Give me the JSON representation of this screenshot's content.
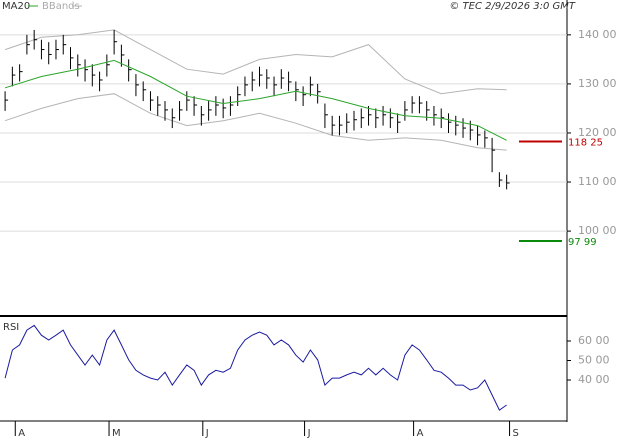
{
  "chart_data": [
    {
      "type": "ohlc",
      "copyright": "© TEC 2/9/2026 3:0 GMT",
      "xlim": [
        -0.7,
        70.7
      ],
      "ylim": [
        82.9,
        147.1
      ],
      "yticks": [
        {
          "value": 140,
          "label": "140 00"
        },
        {
          "value": 130,
          "label": "130 00"
        },
        {
          "value": 120,
          "label": "120 00"
        },
        {
          "value": 110,
          "label": "110 00"
        },
        {
          "value": 100,
          "label": "100 00"
        }
      ],
      "grid": true,
      "color": "#000000",
      "high": [
        128.5,
        133.5,
        134,
        140,
        141,
        139,
        138.5,
        139,
        140,
        137.5,
        136,
        135,
        134,
        132.5,
        136,
        141,
        138,
        135,
        132,
        130.5,
        128.5,
        127.5,
        126.5,
        125,
        126.5,
        128.5,
        127.5,
        125.5,
        126.5,
        127.5,
        127,
        127.5,
        129.5,
        131.5,
        132.5,
        133.5,
        133,
        131.5,
        133,
        132.5,
        130.5,
        129.5,
        131.5,
        130,
        126,
        123.5,
        123.5,
        124,
        124.5,
        125,
        125.5,
        125,
        125.5,
        125,
        124,
        126.5,
        127.5,
        127.5,
        126.5,
        125.5,
        125,
        124,
        123.5,
        123,
        122.5,
        121.5,
        120.5,
        119,
        112,
        111.5
      ],
      "low": [
        124.5,
        129.5,
        130.5,
        136,
        137,
        135,
        134,
        135,
        136,
        133,
        131.5,
        130.5,
        129.5,
        128.5,
        131.5,
        136,
        133.5,
        130.5,
        127.5,
        126.5,
        124.5,
        123.5,
        122.5,
        121,
        122.5,
        124.5,
        123.5,
        121.5,
        122.5,
        123.5,
        123,
        123.5,
        125.5,
        127.5,
        128.5,
        129.5,
        129,
        127.5,
        129,
        128.5,
        126.5,
        125.5,
        127.5,
        126,
        121,
        119.5,
        119.5,
        120,
        120.5,
        121,
        121.5,
        121,
        121.5,
        121,
        120,
        122.5,
        124,
        124,
        122.5,
        121.5,
        121,
        120,
        119.5,
        119,
        118.5,
        117.5,
        117,
        112,
        109,
        108.5
      ],
      "close": [
        126.7,
        131.8,
        132.5,
        138,
        139,
        137,
        136,
        137,
        138,
        135.3,
        133.9,
        132.9,
        131.8,
        130.8,
        133.9,
        138.6,
        135.9,
        132.9,
        129.8,
        128.8,
        126.7,
        125.7,
        124.7,
        123.1,
        124.7,
        126.7,
        125.7,
        123.7,
        124.7,
        125.7,
        125.1,
        125.7,
        127.8,
        129.8,
        130.8,
        131.8,
        131.2,
        129.8,
        131.2,
        130.4,
        128.8,
        127.8,
        129.8,
        128.4,
        123.7,
        121.6,
        121.6,
        122.2,
        122.7,
        123.1,
        123.7,
        123.1,
        123.7,
        123.1,
        122.2,
        124.7,
        126.1,
        126.1,
        124.7,
        123.7,
        123.1,
        122.2,
        121.6,
        121,
        120.6,
        119.6,
        119,
        116.5,
        110.4,
        109.8
      ],
      "series": [
        {
          "name": "MA20",
          "color": "#2aa52a",
          "x": [
            0,
            5,
            10,
            15,
            20,
            25,
            30,
            35,
            40,
            45,
            50,
            55,
            60,
            65,
            69
          ],
          "values": [
            129.2,
            131.5,
            133,
            134.8,
            131.5,
            127.5,
            126,
            127,
            128.5,
            127,
            125,
            123.5,
            123,
            121.5,
            118.5
          ]
        },
        {
          "name": "BBands",
          "color": "#b4b4b4",
          "x": [
            0,
            5,
            10,
            15,
            20,
            25,
            30,
            35,
            40,
            45,
            50,
            55,
            60,
            65,
            69
          ],
          "upper": [
            137,
            139.5,
            140,
            141,
            137,
            133,
            132,
            135,
            136,
            135.5,
            138,
            131,
            128,
            129,
            128.8
          ],
          "lower": [
            122.5,
            125,
            127,
            128,
            124,
            121.5,
            122.5,
            124,
            122,
            119.5,
            118.5,
            119,
            118.5,
            117,
            116.5
          ]
        }
      ],
      "levels": [
        {
          "value": 118.25,
          "label": "118 25",
          "color": "#c00000"
        },
        {
          "value": 97.99,
          "label": "97 99",
          "color": "#0a8a0a"
        }
      ]
    },
    {
      "type": "line",
      "title": "RSI",
      "color": "#1a1aa0",
      "ylim": [
        19.5,
        71.8
      ],
      "yticks": [
        {
          "value": 60,
          "label": "60 00"
        },
        {
          "value": 50,
          "label": "50 00"
        },
        {
          "value": 40,
          "label": "40 00"
        }
      ],
      "xticks": [
        {
          "value": 1.4,
          "label": "A"
        },
        {
          "value": 14.3,
          "label": "M"
        },
        {
          "value": 27.2,
          "label": "J"
        },
        {
          "value": 41.2,
          "label": "J"
        },
        {
          "value": 56.2,
          "label": "A"
        },
        {
          "value": 69.4,
          "label": "S"
        }
      ],
      "values": [
        41,
        55.4,
        58,
        65.6,
        68,
        63,
        60.5,
        63,
        65.6,
        58,
        52.8,
        47.7,
        52.8,
        47.7,
        60.5,
        65.6,
        58,
        50.3,
        45,
        42.6,
        41,
        40,
        44,
        37.4,
        42.6,
        47.7,
        45,
        37.4,
        42.6,
        45,
        44,
        46,
        55.4,
        60.5,
        63,
        64.6,
        63,
        58,
        60.5,
        58,
        52.8,
        49.2,
        55.4,
        50.3,
        37.4,
        41,
        41,
        42.6,
        44,
        42.6,
        46,
        42.6,
        46,
        42.6,
        40,
        52.8,
        58,
        55.4,
        50.3,
        45,
        44,
        41,
        37.4,
        37.4,
        34.9,
        36,
        40,
        32.3,
        24.6,
        27.2
      ]
    }
  ]
}
